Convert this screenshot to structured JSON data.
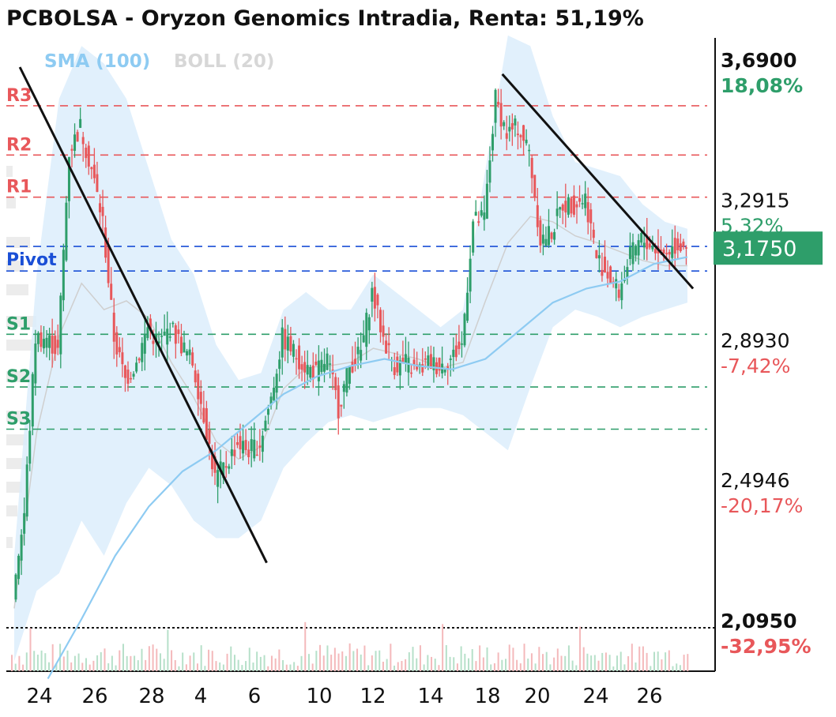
{
  "chart_data": {
    "type": "candlestick",
    "title": "PCBOLSA - Oryzon Genomics Intradia, Renta: 51,19%",
    "indicators": [
      {
        "name": "SMA (100)",
        "color": "#8ecbf2"
      },
      {
        "name": "BOLL (20)",
        "color": "#d7d7d7"
      }
    ],
    "x_tick_labels": [
      "24",
      "26",
      "28",
      "4",
      "6",
      "10",
      "12",
      "14",
      "18",
      "20",
      "24",
      "26"
    ],
    "y_axis_labels": [
      {
        "value": "3,6900",
        "pct": "18,08%",
        "bold": true,
        "pct_color": "#2e9e6a"
      },
      {
        "value": "3,2915",
        "pct": "5,32%",
        "bold": false,
        "pct_color": "#2e9e6a"
      },
      {
        "value": "2,8930",
        "pct": "-7,42%",
        "bold": false,
        "pct_color": "#e8575a"
      },
      {
        "value": "2,4946",
        "pct": "-20,17%",
        "bold": false,
        "pct_color": "#e8575a"
      },
      {
        "value": "2,0950",
        "pct": "-32,95%",
        "bold": true,
        "pct_color": "#e8575a"
      }
    ],
    "y_range": [
      1.98,
      3.83
    ],
    "current_price": {
      "label": "3,1750",
      "value": 3.175,
      "color": "#2e9e6a"
    },
    "reference_level": {
      "value": 2.095
    },
    "pivot_levels": [
      {
        "name": "R3",
        "value": 3.58,
        "color": "#e8575a"
      },
      {
        "name": "R2",
        "value": 3.44,
        "color": "#e8575a"
      },
      {
        "name": "R1",
        "value": 3.32,
        "color": "#e8575a"
      },
      {
        "name": "Pivot",
        "value": 3.18,
        "color": "#1a4fd6"
      },
      {
        "name": "S1",
        "value": 2.93,
        "color": "#2e9e6a"
      },
      {
        "name": "S2",
        "value": 2.78,
        "color": "#2e9e6a"
      },
      {
        "name": "S3",
        "value": 2.66,
        "color": "#2e9e6a"
      }
    ],
    "pivot_aux_line": {
      "value": 3.11,
      "color": "#1a4fd6"
    },
    "trend_lines": [
      {
        "points": [
          [
            0.5,
            3.69
          ],
          [
            22.5,
            2.28
          ]
        ]
      },
      {
        "points": [
          [
            43.5,
            3.67
          ],
          [
            60.5,
            3.06
          ]
        ]
      }
    ],
    "legend": "top-left",
    "price_path": [
      [
        0,
        2.2
      ],
      [
        1,
        2.42
      ],
      [
        2,
        2.92
      ],
      [
        3,
        2.92
      ],
      [
        4,
        2.88
      ],
      [
        5,
        3.45
      ],
      [
        6,
        3.52
      ],
      [
        7,
        3.4
      ],
      [
        8,
        3.25
      ],
      [
        9,
        2.92
      ],
      [
        10,
        2.8
      ],
      [
        11,
        2.85
      ],
      [
        12,
        2.95
      ],
      [
        13,
        2.9
      ],
      [
        14,
        2.95
      ],
      [
        15,
        2.9
      ],
      [
        16,
        2.85
      ],
      [
        17,
        2.7
      ],
      [
        18,
        2.52
      ],
      [
        19,
        2.56
      ],
      [
        20,
        2.62
      ],
      [
        21,
        2.6
      ],
      [
        22,
        2.62
      ],
      [
        23,
        2.75
      ],
      [
        24,
        2.92
      ],
      [
        25,
        2.88
      ],
      [
        26,
        2.84
      ],
      [
        27,
        2.82
      ],
      [
        28,
        2.86
      ],
      [
        29,
        2.72
      ],
      [
        30,
        2.84
      ],
      [
        31,
        2.88
      ],
      [
        32,
        3.05
      ],
      [
        33,
        2.92
      ],
      [
        34,
        2.84
      ],
      [
        35,
        2.85
      ],
      [
        36,
        2.82
      ],
      [
        37,
        2.85
      ],
      [
        38,
        2.84
      ],
      [
        39,
        2.86
      ],
      [
        40,
        2.9
      ],
      [
        41,
        3.25
      ],
      [
        42,
        3.26
      ],
      [
        43,
        3.6
      ],
      [
        44,
        3.5
      ],
      [
        45,
        3.52
      ],
      [
        46,
        3.45
      ],
      [
        47,
        3.2
      ],
      [
        48,
        3.22
      ],
      [
        49,
        3.3
      ],
      [
        50,
        3.3
      ],
      [
        51,
        3.32
      ],
      [
        52,
        3.15
      ],
      [
        53,
        3.1
      ],
      [
        54,
        3.05
      ],
      [
        55,
        3.15
      ],
      [
        56,
        3.2
      ],
      [
        57,
        3.18
      ],
      [
        58,
        3.16
      ],
      [
        59,
        3.18
      ],
      [
        60,
        3.19
      ]
    ],
    "sma_100": [
      [
        3,
        1.95
      ],
      [
        6,
        2.12
      ],
      [
        9,
        2.3
      ],
      [
        12,
        2.44
      ],
      [
        15,
        2.54
      ],
      [
        18,
        2.6
      ],
      [
        21,
        2.68
      ],
      [
        24,
        2.76
      ],
      [
        27,
        2.81
      ],
      [
        30,
        2.84
      ],
      [
        33,
        2.86
      ],
      [
        36,
        2.84
      ],
      [
        39,
        2.83
      ],
      [
        42,
        2.86
      ],
      [
        45,
        2.94
      ],
      [
        48,
        3.02
      ],
      [
        51,
        3.06
      ],
      [
        54,
        3.08
      ],
      [
        57,
        3.13
      ],
      [
        60,
        3.15
      ]
    ],
    "bollinger_20": {
      "upper": [
        [
          0,
          2.3
        ],
        [
          2,
          3.1
        ],
        [
          4,
          3.6
        ],
        [
          6,
          3.75
        ],
        [
          8,
          3.7
        ],
        [
          10,
          3.6
        ],
        [
          12,
          3.4
        ],
        [
          14,
          3.2
        ],
        [
          16,
          3.1
        ],
        [
          18,
          2.9
        ],
        [
          20,
          2.8
        ],
        [
          22,
          2.82
        ],
        [
          24,
          3.0
        ],
        [
          26,
          3.05
        ],
        [
          28,
          3.0
        ],
        [
          30,
          3.0
        ],
        [
          32,
          3.1
        ],
        [
          34,
          3.05
        ],
        [
          36,
          3.0
        ],
        [
          38,
          2.95
        ],
        [
          40,
          3.0
        ],
        [
          42,
          3.4
        ],
        [
          44,
          3.78
        ],
        [
          46,
          3.75
        ],
        [
          48,
          3.55
        ],
        [
          50,
          3.42
        ],
        [
          52,
          3.4
        ],
        [
          54,
          3.38
        ],
        [
          56,
          3.3
        ],
        [
          58,
          3.25
        ],
        [
          60,
          3.23
        ]
      ],
      "lower": [
        [
          0,
          2.0
        ],
        [
          2,
          2.2
        ],
        [
          4,
          2.25
        ],
        [
          6,
          2.4
        ],
        [
          8,
          2.3
        ],
        [
          10,
          2.45
        ],
        [
          12,
          2.55
        ],
        [
          14,
          2.5
        ],
        [
          16,
          2.4
        ],
        [
          18,
          2.35
        ],
        [
          20,
          2.35
        ],
        [
          22,
          2.4
        ],
        [
          24,
          2.55
        ],
        [
          26,
          2.62
        ],
        [
          28,
          2.68
        ],
        [
          30,
          2.7
        ],
        [
          32,
          2.68
        ],
        [
          34,
          2.7
        ],
        [
          36,
          2.72
        ],
        [
          38,
          2.72
        ],
        [
          40,
          2.7
        ],
        [
          42,
          2.65
        ],
        [
          44,
          2.6
        ],
        [
          46,
          2.78
        ],
        [
          48,
          2.95
        ],
        [
          50,
          3.0
        ],
        [
          52,
          2.98
        ],
        [
          54,
          2.95
        ],
        [
          56,
          2.98
        ],
        [
          58,
          3.0
        ],
        [
          60,
          3.02
        ]
      ]
    }
  }
}
